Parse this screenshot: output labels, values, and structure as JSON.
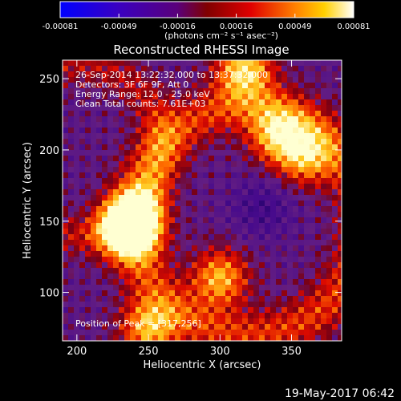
{
  "colorbar": {
    "ticks": [
      "-0.00081",
      "-0.00049",
      "-0.00016",
      "0.00016",
      "0.00049",
      "0.00081"
    ],
    "unit_label": "(photons cm⁻² s⁻¹ asec⁻²)"
  },
  "chart_data": {
    "type": "heatmap",
    "title": "Reconstructed RHESSI Image",
    "xlabel": "Heliocentric X (arcsec)",
    "ylabel": "Heliocentric Y (arcsec)",
    "xlim": [
      190,
      385
    ],
    "ylim": [
      66,
      263
    ],
    "xticks": [
      200,
      250,
      300,
      350
    ],
    "yticks": [
      100,
      150,
      200,
      250
    ],
    "vmin": -0.00081,
    "vmax": 0.00081,
    "grid": false,
    "info_lines": [
      "26-Sep-2014 13:22:32.000 to 13:37:32.000",
      "Detectors: 3F 6F 9F, Att 0",
      "Energy Range: 12.0 - 25.0 keV",
      "Clean    Total counts: 7.61E+03"
    ],
    "peak_label": "Position of Peak = [317,256]",
    "peak": [
      317,
      256
    ],
    "bright_features": [
      {
        "x": 240,
        "y": 150,
        "level": 0.95
      },
      {
        "x": 235,
        "y": 143,
        "level": 0.9
      },
      {
        "x": 300,
        "y": 110,
        "level": 0.85
      },
      {
        "x": 340,
        "y": 210,
        "level": 0.85
      },
      {
        "x": 360,
        "y": 195,
        "level": 0.8
      },
      {
        "x": 317,
        "y": 256,
        "level": 1.0
      },
      {
        "x": 250,
        "y": 75,
        "level": 0.85
      }
    ]
  },
  "footer_date": "19-May-2017 06:42"
}
